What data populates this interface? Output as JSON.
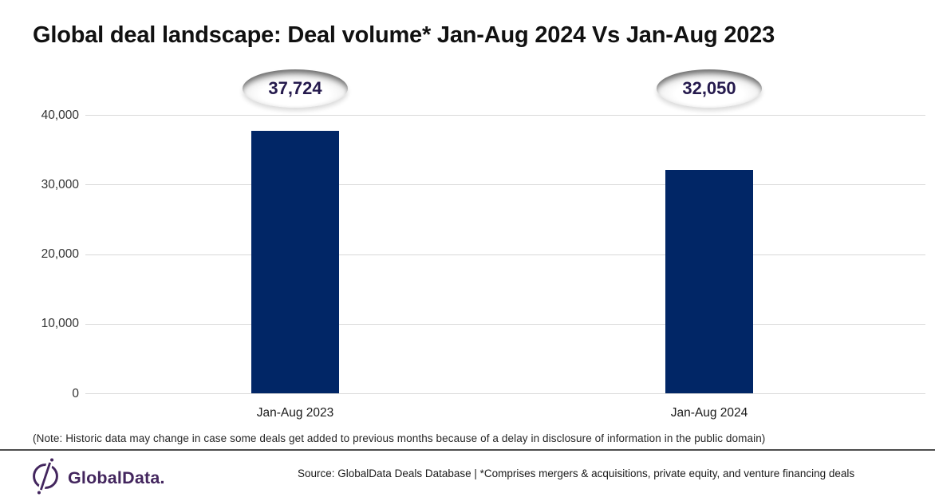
{
  "title": "Global deal landscape: Deal volume* Jan-Aug 2024 Vs Jan-Aug 2023",
  "chart_data": {
    "type": "bar",
    "title": "Global deal landscape: Deal volume* Jan-Aug 2024 Vs Jan-Aug 2023",
    "categories": [
      "Jan-Aug 2023",
      "Jan-Aug 2024"
    ],
    "values": [
      37724,
      32050
    ],
    "value_labels": [
      "37,724",
      "32,050"
    ],
    "xlabel": "",
    "ylabel": "",
    "ylim": [
      0,
      40000
    ],
    "ytick_values": [
      40000,
      30000,
      20000,
      10000,
      0
    ],
    "ytick_labels": [
      "40,000",
      "30,000",
      "20,000",
      "10,000",
      "0"
    ],
    "grid": true,
    "legend": false
  },
  "note": "(Note: Historic data may change in case some deals get added to previous months because of a delay in disclosure of information in the public domain)",
  "footer": {
    "logo_text": "GlobalData.",
    "source": "Source: GlobalData Deals Database | *Comprises mergers & acquisitions, private equity, and venture financing deals"
  },
  "colors": {
    "bar": "#012666",
    "callout_text": "#251a4d",
    "gridline": "#d9d9d9",
    "brand_purple": "#43265e"
  },
  "icons": {
    "logo_icon": "globaldata-compass-icon"
  }
}
